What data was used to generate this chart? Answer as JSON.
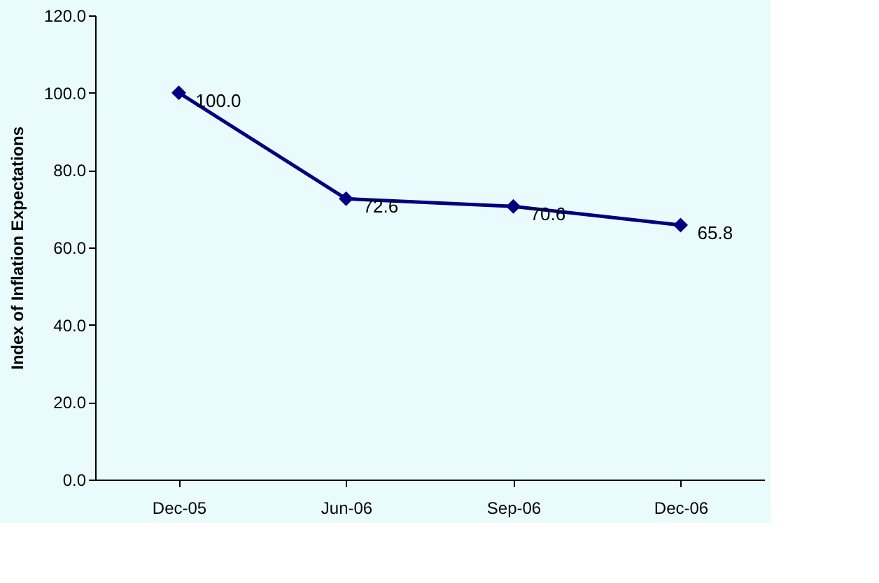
{
  "chart_data": {
    "type": "line",
    "ylabel": "Index of Inflation Expectations",
    "categories": [
      "Dec-05",
      "Jun-06",
      "Sep-06",
      "Dec-06"
    ],
    "series": [
      {
        "color": "#000080",
        "values": [
          100.0,
          72.6,
          70.6,
          65.8
        ],
        "value_labels": [
          "100.0",
          "72.6",
          "70.6",
          "65.8"
        ]
      }
    ],
    "ylim": [
      0,
      120
    ],
    "yticks": [
      {
        "value": 0,
        "label": "0.0"
      },
      {
        "value": 20,
        "label": "20.0"
      },
      {
        "value": 40,
        "label": "40.0"
      },
      {
        "value": 60,
        "label": "60.0"
      },
      {
        "value": 80,
        "label": "80.0"
      },
      {
        "value": 100,
        "label": "100.0"
      },
      {
        "value": 120,
        "label": "120.0"
      }
    ],
    "marker": "diamond",
    "line_style": "solid",
    "grid": false
  }
}
